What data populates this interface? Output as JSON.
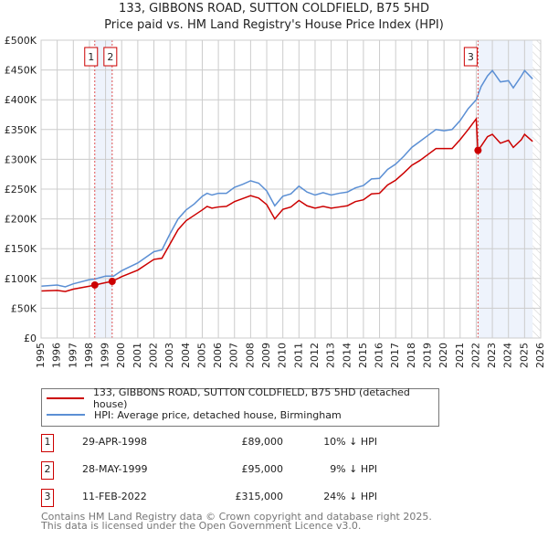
{
  "chart_data": {
    "type": "line",
    "title": "133, GIBBONS ROAD, SUTTON COLDFIELD, B75 5HD",
    "subtitle": "Price paid vs. HM Land Registry's House Price Index (HPI)",
    "xlim": [
      1995,
      2026
    ],
    "ylim": [
      0,
      500000
    ],
    "x_ticks": [
      "1995",
      "1996",
      "1997",
      "1998",
      "1999",
      "2000",
      "2001",
      "2002",
      "2003",
      "2004",
      "2005",
      "2006",
      "2007",
      "2008",
      "2009",
      "2010",
      "2011",
      "2012",
      "2013",
      "2014",
      "2015",
      "2016",
      "2017",
      "2018",
      "2019",
      "2020",
      "2021",
      "2022",
      "2023",
      "2024",
      "2025",
      "2026"
    ],
    "y_ticks": [
      "£0",
      "£50K",
      "£100K",
      "£150K",
      "£200K",
      "£250K",
      "£300K",
      "£350K",
      "£400K",
      "£450K",
      "£500K"
    ],
    "grid": true,
    "series": [
      {
        "name": "133, GIBBONS ROAD, SUTTON COLDFIELD, B75 5HD (detached house)",
        "color": "#cc0000",
        "x": [
          1995,
          1996,
          1996.5,
          1997,
          1998,
          1998.33,
          1999,
          1999.4,
          2000,
          2001,
          2002,
          2002.5,
          2003,
          2003.5,
          2004,
          2004.5,
          2005,
          2005.3,
          2005.6,
          2006,
          2006.5,
          2007,
          2007.5,
          2008,
          2008.5,
          2009,
          2009.5,
          2010,
          2010.5,
          2011,
          2011.5,
          2012,
          2012.5,
          2013,
          2013.5,
          2014,
          2014.5,
          2015,
          2015.5,
          2016,
          2016.5,
          2017,
          2017.5,
          2018,
          2018.5,
          2019,
          2019.5,
          2020,
          2020.5,
          2021,
          2021.5,
          2022.0,
          2022.1,
          2022.3,
          2022.7,
          2023,
          2023.5,
          2024,
          2024.3,
          2024.8,
          2025,
          2025.5
        ],
        "y": [
          79000,
          80000,
          78000,
          82000,
          87000,
          89000,
          93000,
          95000,
          103000,
          114000,
          132000,
          134000,
          158000,
          182000,
          197000,
          206000,
          215000,
          221000,
          218000,
          220000,
          221000,
          229000,
          234000,
          239000,
          235000,
          224000,
          200000,
          216000,
          220000,
          231000,
          222000,
          218000,
          221000,
          218000,
          220000,
          222000,
          229000,
          232000,
          242000,
          243000,
          257000,
          265000,
          277000,
          290000,
          298000,
          308000,
          318000,
          318000,
          318000,
          333000,
          350000,
          368000,
          315000,
          322000,
          338000,
          342000,
          327000,
          332000,
          320000,
          333000,
          342000,
          330000
        ]
      },
      {
        "name": "HPI: Average price, detached house, Birmingham",
        "color": "#5b8fd4",
        "x": [
          1995,
          1996,
          1996.5,
          1997,
          1998,
          1998.33,
          1999,
          1999.5,
          2000,
          2001,
          2002,
          2002.5,
          2003,
          2003.5,
          2004,
          2004.5,
          2005,
          2005.3,
          2005.6,
          2006,
          2006.5,
          2007,
          2007.5,
          2008,
          2008.5,
          2009,
          2009.5,
          2010,
          2010.5,
          2011,
          2011.5,
          2012,
          2012.5,
          2013,
          2013.5,
          2014,
          2014.5,
          2015,
          2015.5,
          2016,
          2016.5,
          2017,
          2017.5,
          2018,
          2018.5,
          2019,
          2019.5,
          2020,
          2020.5,
          2021,
          2021.5,
          2022,
          2022.3,
          2022.7,
          2023,
          2023.5,
          2024,
          2024.3,
          2024.8,
          2025,
          2025.5
        ],
        "y": [
          87000,
          89000,
          86000,
          91000,
          98000,
          99000,
          104000,
          104000,
          113000,
          126000,
          145000,
          148000,
          175000,
          200000,
          215000,
          225000,
          238000,
          243000,
          240000,
          243000,
          243000,
          253000,
          258000,
          264000,
          260000,
          247000,
          222000,
          238000,
          242000,
          255000,
          245000,
          240000,
          244000,
          240000,
          243000,
          245000,
          252000,
          256000,
          267000,
          268000,
          283000,
          292000,
          305000,
          320000,
          330000,
          340000,
          350000,
          348000,
          350000,
          365000,
          385000,
          400000,
          422000,
          440000,
          449000,
          430000,
          432000,
          420000,
          440000,
          449000,
          435000
        ]
      }
    ],
    "sales": [
      {
        "label": "1",
        "date": "29-APR-1998",
        "price": "£89,000",
        "hpi": "10% ↓ HPI",
        "x": 1998.33,
        "y": 89000
      },
      {
        "label": "2",
        "date": "28-MAY-1999",
        "price": "£95,000",
        "hpi": "9% ↓ HPI",
        "x": 1999.41,
        "y": 95000
      },
      {
        "label": "3",
        "date": "11-FEB-2022",
        "price": "£315,000",
        "hpi": "24% ↓ HPI",
        "x": 2022.11,
        "y": 315000
      }
    ],
    "shaded_ranges": [
      [
        1998.33,
        1999.41
      ],
      [
        2022.11,
        2025.5
      ]
    ],
    "forecast_start": 2025.5
  },
  "footer": {
    "line1": "Contains HM Land Registry data © Crown copyright and database right 2025.",
    "line2": "This data is licensed under the Open Government Licence v3.0."
  }
}
